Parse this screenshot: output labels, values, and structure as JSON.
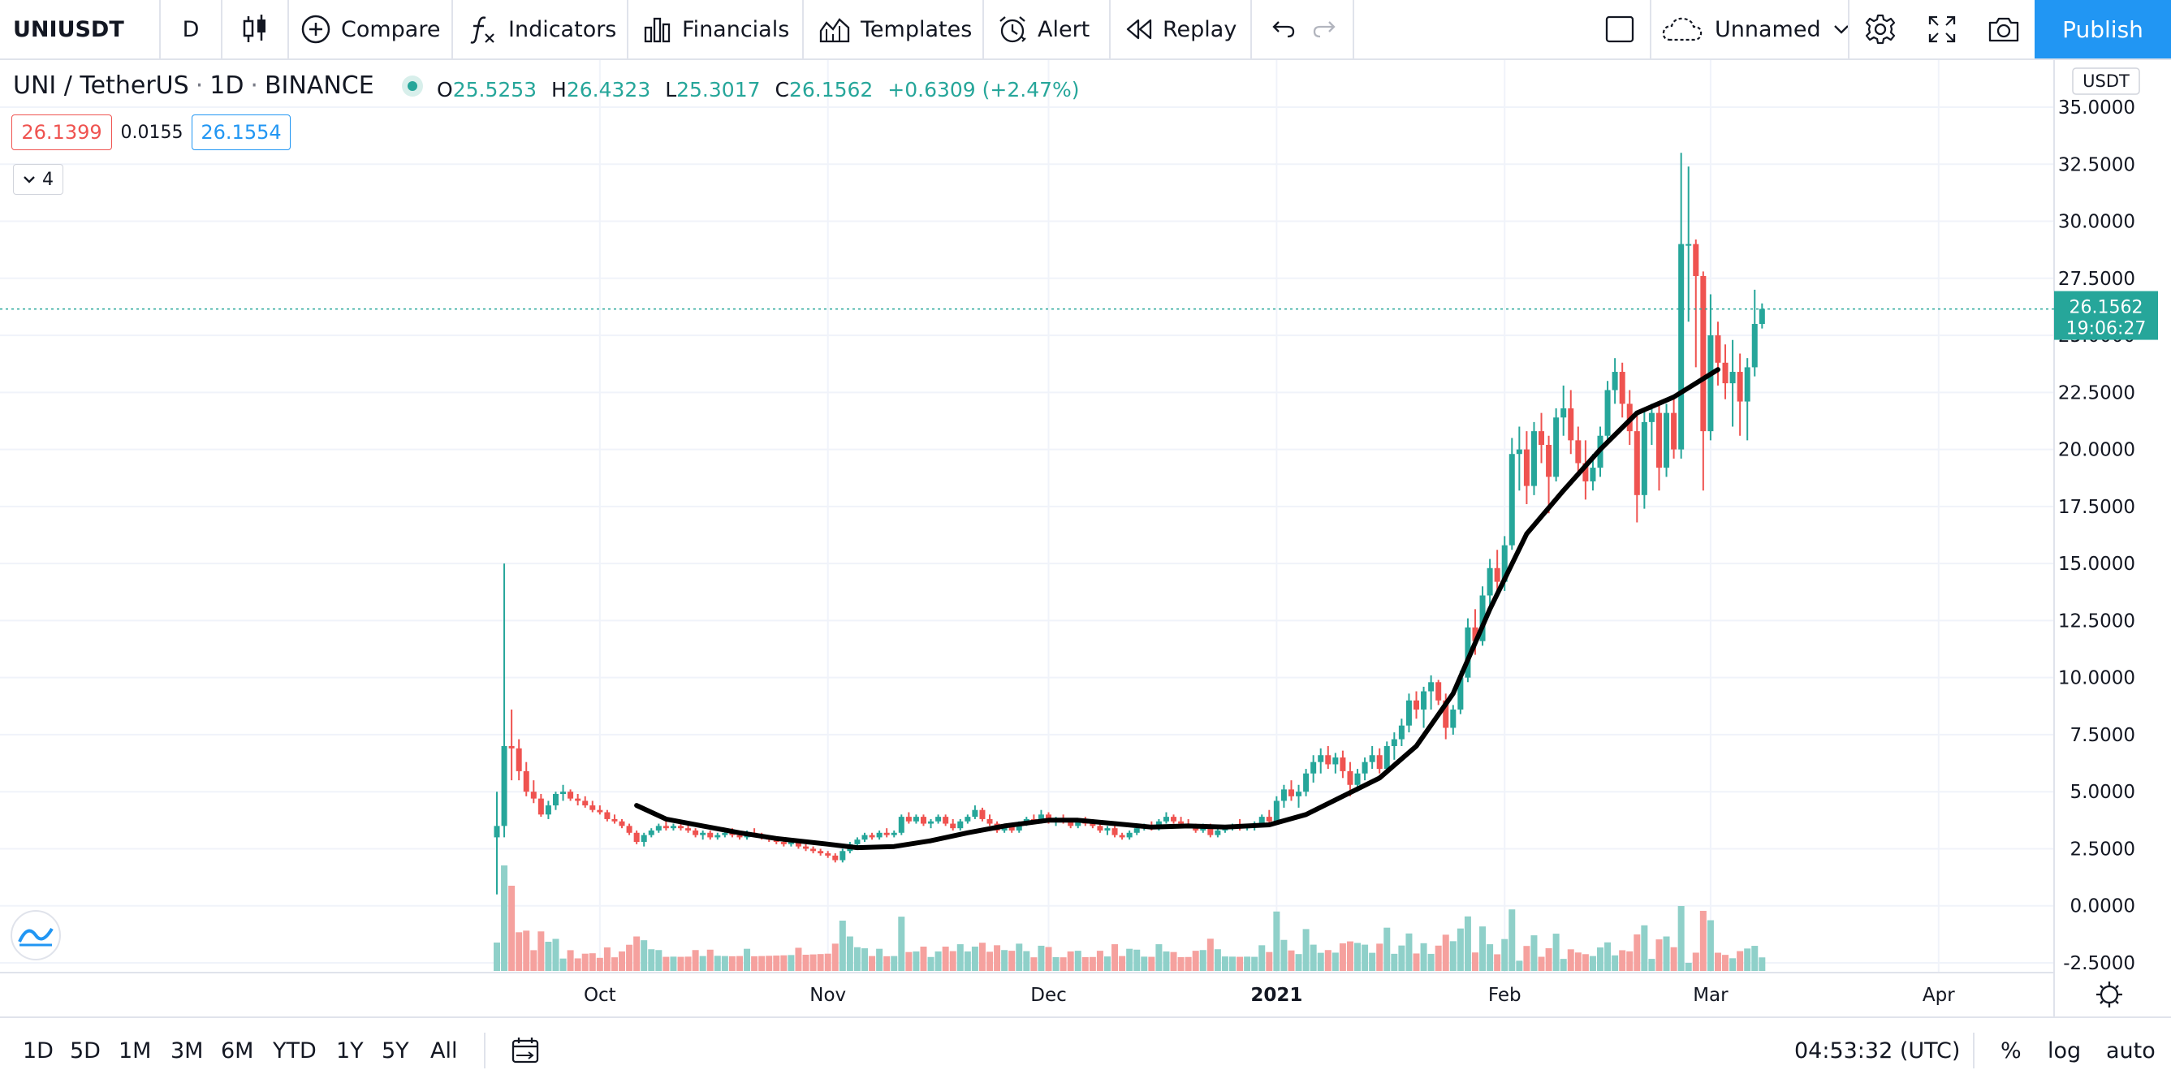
{
  "toolbar": {
    "symbol": "UNIUSDT",
    "interval": "D",
    "chart_style_icon": "candles-icon",
    "compare": "Compare",
    "indicators": "Indicators",
    "financials": "Financials",
    "templates": "Templates",
    "alert": "Alert",
    "replay": "Replay",
    "layout_name": "Unnamed",
    "publish": "Publish"
  },
  "legend": {
    "title": "UNI / TetherUS",
    "interval": "1D",
    "exchange": "BINANCE",
    "o_label": "O",
    "o": "25.5253",
    "h_label": "H",
    "h": "26.4323",
    "l_label": "L",
    "l": "25.3017",
    "c_label": "C",
    "c": "26.1562",
    "change": "+0.6309 (+2.47%)",
    "bid": "26.1399",
    "spread": "0.0155",
    "ask": "26.1554",
    "collapsed_count": "4"
  },
  "chart_data": {
    "type": "candlestick",
    "currency": "USDT",
    "y_ticks": [
      "35.0000",
      "32.5000",
      "30.0000",
      "27.5000",
      "25.0000",
      "22.5000",
      "20.0000",
      "17.5000",
      "15.0000",
      "12.5000",
      "10.0000",
      "7.5000",
      "5.0000",
      "2.5000",
      "0.0000",
      "-2.5000"
    ],
    "ylim": [
      -2.9,
      35.6
    ],
    "x_ticks": [
      "Oct",
      "Nov",
      "Dec",
      "2021",
      "Feb",
      "Mar",
      "Apr"
    ],
    "last_price": "26.1562",
    "countdown": "19:06:27",
    "colors": {
      "up": "#26a69a",
      "down": "#ef5350",
      "ma": "#000000",
      "up_vol": "#8fd0c9",
      "down_vol": "#f5a19e"
    },
    "ma_series": [
      [
        "2020-10-06",
        4.4
      ],
      [
        "2020-10-10",
        3.8
      ],
      [
        "2020-10-15",
        3.5
      ],
      [
        "2020-10-20",
        3.2
      ],
      [
        "2020-10-25",
        2.95
      ],
      [
        "2020-11-01",
        2.7
      ],
      [
        "2020-11-05",
        2.55
      ],
      [
        "2020-11-10",
        2.6
      ],
      [
        "2020-11-15",
        2.85
      ],
      [
        "2020-11-20",
        3.2
      ],
      [
        "2020-11-25",
        3.5
      ],
      [
        "2020-12-01",
        3.75
      ],
      [
        "2020-12-05",
        3.75
      ],
      [
        "2020-12-10",
        3.6
      ],
      [
        "2020-12-15",
        3.45
      ],
      [
        "2020-12-20",
        3.5
      ],
      [
        "2020-12-25",
        3.45
      ],
      [
        "2020-12-31",
        3.55
      ],
      [
        "2021-01-05",
        4.0
      ],
      [
        "2021-01-10",
        4.8
      ],
      [
        "2021-01-15",
        5.6
      ],
      [
        "2021-01-20",
        7.0
      ],
      [
        "2021-01-25",
        9.3
      ],
      [
        "2021-01-30",
        13.0
      ],
      [
        "2021-02-04",
        16.3
      ],
      [
        "2021-02-09",
        18.2
      ],
      [
        "2021-02-14",
        20.0
      ],
      [
        "2021-02-19",
        21.6
      ],
      [
        "2021-02-24",
        22.3
      ],
      [
        "2021-03-02",
        23.5
      ]
    ],
    "candles": [
      [
        "2020-09-17",
        3.0,
        5.0,
        0.5,
        3.5
      ],
      [
        "2020-09-18",
        3.5,
        15.0,
        3.0,
        7.0
      ],
      [
        "2020-09-19",
        7.0,
        8.6,
        5.5,
        6.9
      ],
      [
        "2020-09-20",
        6.9,
        7.3,
        5.5,
        5.9
      ],
      [
        "2020-09-21",
        5.9,
        6.3,
        4.8,
        5.0
      ],
      [
        "2020-09-22",
        5.0,
        5.5,
        4.5,
        4.7
      ],
      [
        "2020-09-23",
        4.7,
        4.9,
        3.9,
        4.0
      ],
      [
        "2020-09-24",
        4.0,
        4.6,
        3.8,
        4.4
      ],
      [
        "2020-09-25",
        4.4,
        5.0,
        4.2,
        4.9
      ],
      [
        "2020-09-26",
        4.9,
        5.3,
        4.6,
        5.0
      ],
      [
        "2020-09-27",
        5.0,
        5.1,
        4.6,
        4.7
      ],
      [
        "2020-09-28",
        4.7,
        4.9,
        4.4,
        4.6
      ],
      [
        "2020-09-29",
        4.6,
        4.8,
        4.3,
        4.4
      ],
      [
        "2020-09-30",
        4.4,
        4.6,
        4.1,
        4.2
      ],
      [
        "2020-10-01",
        4.2,
        4.4,
        4.0,
        4.1
      ],
      [
        "2020-10-02",
        4.1,
        4.2,
        3.7,
        3.8
      ],
      [
        "2020-10-03",
        3.8,
        4.0,
        3.6,
        3.7
      ],
      [
        "2020-10-04",
        3.7,
        3.8,
        3.4,
        3.5
      ],
      [
        "2020-10-05",
        3.5,
        3.6,
        3.1,
        3.2
      ],
      [
        "2020-10-06",
        3.2,
        3.3,
        2.7,
        2.8
      ],
      [
        "2020-10-07",
        2.8,
        3.2,
        2.6,
        3.1
      ],
      [
        "2020-10-08",
        3.1,
        3.4,
        3.0,
        3.3
      ],
      [
        "2020-10-09",
        3.3,
        3.6,
        3.2,
        3.5
      ],
      [
        "2020-10-10",
        3.5,
        3.7,
        3.3,
        3.4
      ],
      [
        "2020-10-11",
        3.4,
        3.6,
        3.3,
        3.5
      ],
      [
        "2020-10-12",
        3.5,
        3.7,
        3.3,
        3.4
      ],
      [
        "2020-10-13",
        3.4,
        3.6,
        3.2,
        3.3
      ],
      [
        "2020-10-14",
        3.3,
        3.4,
        3.0,
        3.1
      ],
      [
        "2020-10-15",
        3.1,
        3.3,
        2.9,
        3.2
      ],
      [
        "2020-10-16",
        3.2,
        3.3,
        2.9,
        3.0
      ],
      [
        "2020-10-17",
        3.0,
        3.2,
        2.9,
        3.1
      ],
      [
        "2020-10-18",
        3.1,
        3.3,
        3.0,
        3.2
      ],
      [
        "2020-10-19",
        3.2,
        3.4,
        3.0,
        3.1
      ],
      [
        "2020-10-20",
        3.1,
        3.2,
        2.9,
        3.0
      ],
      [
        "2020-10-21",
        3.0,
        3.3,
        2.9,
        3.2
      ],
      [
        "2020-10-22",
        3.2,
        3.4,
        3.0,
        3.1
      ],
      [
        "2020-10-23",
        3.1,
        3.2,
        2.9,
        3.0
      ],
      [
        "2020-10-24",
        3.0,
        3.1,
        2.8,
        2.9
      ],
      [
        "2020-10-25",
        2.9,
        3.0,
        2.7,
        2.8
      ],
      [
        "2020-10-26",
        2.8,
        2.9,
        2.6,
        2.7
      ],
      [
        "2020-10-27",
        2.7,
        2.9,
        2.6,
        2.8
      ],
      [
        "2020-10-28",
        2.8,
        2.9,
        2.5,
        2.6
      ],
      [
        "2020-10-29",
        2.6,
        2.7,
        2.4,
        2.5
      ],
      [
        "2020-10-30",
        2.5,
        2.6,
        2.3,
        2.4
      ],
      [
        "2020-10-31",
        2.4,
        2.5,
        2.2,
        2.3
      ],
      [
        "2020-11-01",
        2.3,
        2.4,
        2.1,
        2.2
      ],
      [
        "2020-11-02",
        2.2,
        2.3,
        1.9,
        2.0
      ],
      [
        "2020-11-03",
        2.0,
        2.5,
        1.9,
        2.4
      ],
      [
        "2020-11-04",
        2.4,
        2.8,
        2.3,
        2.7
      ],
      [
        "2020-11-05",
        2.7,
        3.0,
        2.6,
        2.9
      ],
      [
        "2020-11-06",
        2.9,
        3.2,
        2.8,
        3.1
      ],
      [
        "2020-11-07",
        3.1,
        3.2,
        2.9,
        3.0
      ],
      [
        "2020-11-08",
        3.0,
        3.3,
        2.9,
        3.2
      ],
      [
        "2020-11-09",
        3.2,
        3.4,
        3.0,
        3.1
      ],
      [
        "2020-11-10",
        3.1,
        3.3,
        3.0,
        3.2
      ],
      [
        "2020-11-11",
        3.2,
        4.0,
        3.1,
        3.9
      ],
      [
        "2020-11-12",
        3.9,
        4.1,
        3.6,
        3.7
      ],
      [
        "2020-11-13",
        3.7,
        4.0,
        3.6,
        3.9
      ],
      [
        "2020-11-14",
        3.9,
        4.0,
        3.5,
        3.6
      ],
      [
        "2020-11-15",
        3.6,
        3.8,
        3.4,
        3.7
      ],
      [
        "2020-11-16",
        3.7,
        4.0,
        3.6,
        3.9
      ],
      [
        "2020-11-17",
        3.9,
        4.0,
        3.5,
        3.6
      ],
      [
        "2020-11-18",
        3.6,
        3.8,
        3.3,
        3.4
      ],
      [
        "2020-11-19",
        3.4,
        3.8,
        3.3,
        3.7
      ],
      [
        "2020-11-20",
        3.7,
        4.0,
        3.6,
        3.9
      ],
      [
        "2020-11-21",
        3.9,
        4.4,
        3.8,
        4.2
      ],
      [
        "2020-11-22",
        4.2,
        4.3,
        3.7,
        3.8
      ],
      [
        "2020-11-23",
        3.8,
        4.0,
        3.5,
        3.6
      ],
      [
        "2020-11-24",
        3.6,
        3.7,
        3.2,
        3.3
      ],
      [
        "2020-11-25",
        3.3,
        3.6,
        3.2,
        3.5
      ],
      [
        "2020-11-26",
        3.5,
        3.6,
        3.2,
        3.3
      ],
      [
        "2020-11-27",
        3.3,
        3.7,
        3.2,
        3.6
      ],
      [
        "2020-11-28",
        3.6,
        3.9,
        3.5,
        3.8
      ],
      [
        "2020-11-29",
        3.8,
        4.0,
        3.6,
        3.7
      ],
      [
        "2020-11-30",
        3.7,
        4.2,
        3.6,
        4.0
      ],
      [
        "2020-12-01",
        4.0,
        4.1,
        3.6,
        3.7
      ],
      [
        "2020-12-02",
        3.7,
        3.9,
        3.5,
        3.8
      ],
      [
        "2020-12-03",
        3.8,
        4.0,
        3.6,
        3.7
      ],
      [
        "2020-12-04",
        3.7,
        3.8,
        3.4,
        3.5
      ],
      [
        "2020-12-05",
        3.5,
        3.8,
        3.4,
        3.7
      ],
      [
        "2020-12-06",
        3.7,
        3.9,
        3.5,
        3.6
      ],
      [
        "2020-12-07",
        3.6,
        3.8,
        3.4,
        3.5
      ],
      [
        "2020-12-08",
        3.5,
        3.6,
        3.2,
        3.3
      ],
      [
        "2020-12-09",
        3.3,
        3.5,
        3.1,
        3.4
      ],
      [
        "2020-12-10",
        3.4,
        3.5,
        3.0,
        3.1
      ],
      [
        "2020-12-11",
        3.1,
        3.2,
        2.9,
        3.0
      ],
      [
        "2020-12-12",
        3.0,
        3.3,
        2.9,
        3.2
      ],
      [
        "2020-12-13",
        3.2,
        3.5,
        3.1,
        3.4
      ],
      [
        "2020-12-14",
        3.4,
        3.6,
        3.3,
        3.5
      ],
      [
        "2020-12-15",
        3.5,
        3.7,
        3.3,
        3.4
      ],
      [
        "2020-12-16",
        3.4,
        3.8,
        3.3,
        3.7
      ],
      [
        "2020-12-17",
        3.7,
        4.1,
        3.6,
        3.9
      ],
      [
        "2020-12-18",
        3.9,
        4.0,
        3.6,
        3.7
      ],
      [
        "2020-12-19",
        3.7,
        3.9,
        3.5,
        3.6
      ],
      [
        "2020-12-20",
        3.6,
        3.8,
        3.4,
        3.5
      ],
      [
        "2020-12-21",
        3.5,
        3.6,
        3.2,
        3.3
      ],
      [
        "2020-12-22",
        3.3,
        3.6,
        3.2,
        3.5
      ],
      [
        "2020-12-23",
        3.5,
        3.6,
        3.0,
        3.1
      ],
      [
        "2020-12-24",
        3.1,
        3.4,
        3.0,
        3.3
      ],
      [
        "2020-12-25",
        3.3,
        3.5,
        3.2,
        3.4
      ],
      [
        "2020-12-26",
        3.4,
        3.6,
        3.3,
        3.5
      ],
      [
        "2020-12-27",
        3.5,
        3.8,
        3.3,
        3.4
      ],
      [
        "2020-12-28",
        3.4,
        3.6,
        3.3,
        3.5
      ],
      [
        "2020-12-29",
        3.5,
        3.7,
        3.3,
        3.6
      ],
      [
        "2020-12-30",
        3.6,
        4.0,
        3.5,
        3.9
      ],
      [
        "2020-12-31",
        3.9,
        4.2,
        3.6,
        3.7
      ],
      [
        "2021-01-01",
        3.7,
        4.8,
        3.6,
        4.6
      ],
      [
        "2021-01-02",
        4.6,
        5.3,
        4.3,
        5.1
      ],
      [
        "2021-01-03",
        5.1,
        5.5,
        4.6,
        4.8
      ],
      [
        "2021-01-04",
        4.8,
        5.3,
        4.3,
        5.0
      ],
      [
        "2021-01-05",
        5.0,
        6.0,
        4.8,
        5.8
      ],
      [
        "2021-01-06",
        5.8,
        6.6,
        5.4,
        6.3
      ],
      [
        "2021-01-07",
        6.3,
        6.9,
        5.8,
        6.6
      ],
      [
        "2021-01-08",
        6.6,
        7.0,
        6.0,
        6.2
      ],
      [
        "2021-01-09",
        6.2,
        6.7,
        5.8,
        6.5
      ],
      [
        "2021-01-10",
        6.5,
        6.8,
        5.6,
        5.9
      ],
      [
        "2021-01-11",
        5.9,
        6.3,
        4.8,
        5.3
      ],
      [
        "2021-01-12",
        5.3,
        6.0,
        5.0,
        5.8
      ],
      [
        "2021-01-13",
        5.8,
        6.5,
        5.5,
        6.3
      ],
      [
        "2021-01-14",
        6.3,
        7.0,
        6.0,
        6.6
      ],
      [
        "2021-01-15",
        6.6,
        6.9,
        5.8,
        6.0
      ],
      [
        "2021-01-16",
        6.0,
        7.2,
        5.8,
        7.0
      ],
      [
        "2021-01-17",
        7.0,
        7.6,
        6.4,
        7.3
      ],
      [
        "2021-01-18",
        7.3,
        8.2,
        7.0,
        7.9
      ],
      [
        "2021-01-19",
        7.9,
        9.3,
        7.6,
        9.0
      ],
      [
        "2021-01-20",
        9.0,
        9.4,
        8.2,
        8.6
      ],
      [
        "2021-01-21",
        8.6,
        9.6,
        7.8,
        9.4
      ],
      [
        "2021-01-22",
        9.4,
        10.1,
        8.6,
        9.8
      ],
      [
        "2021-01-23",
        9.8,
        9.9,
        8.8,
        9.0
      ],
      [
        "2021-01-24",
        9.0,
        9.3,
        7.3,
        7.8
      ],
      [
        "2021-01-25",
        7.8,
        8.8,
        7.5,
        8.6
      ],
      [
        "2021-01-26",
        8.6,
        10.3,
        8.4,
        10.0
      ],
      [
        "2021-01-27",
        10.0,
        12.6,
        9.8,
        12.2
      ],
      [
        "2021-01-28",
        12.2,
        13.0,
        11.0,
        11.6
      ],
      [
        "2021-01-29",
        11.6,
        14.0,
        11.4,
        13.6
      ],
      [
        "2021-01-30",
        13.6,
        15.2,
        12.8,
        14.8
      ],
      [
        "2021-01-31",
        14.8,
        15.6,
        13.6,
        14.2
      ],
      [
        "2021-02-01",
        14.2,
        16.2,
        13.8,
        15.8
      ],
      [
        "2021-02-02",
        15.8,
        20.5,
        15.6,
        19.8
      ],
      [
        "2021-02-03",
        19.8,
        21.0,
        18.2,
        20.0
      ],
      [
        "2021-02-04",
        20.0,
        20.8,
        17.6,
        18.4
      ],
      [
        "2021-02-05",
        18.4,
        21.2,
        18.0,
        20.8
      ],
      [
        "2021-02-06",
        20.8,
        21.6,
        19.4,
        20.2
      ],
      [
        "2021-02-07",
        20.2,
        20.6,
        17.2,
        18.8
      ],
      [
        "2021-02-08",
        18.8,
        21.8,
        18.6,
        21.4
      ],
      [
        "2021-02-09",
        21.4,
        22.8,
        20.6,
        21.8
      ],
      [
        "2021-02-10",
        21.8,
        22.6,
        19.8,
        20.4
      ],
      [
        "2021-02-11",
        20.4,
        21.0,
        18.8,
        19.4
      ],
      [
        "2021-02-12",
        19.4,
        20.4,
        17.8,
        18.6
      ],
      [
        "2021-02-13",
        18.6,
        19.8,
        18.2,
        19.2
      ],
      [
        "2021-02-14",
        19.2,
        21.0,
        18.8,
        20.6
      ],
      [
        "2021-02-15",
        20.6,
        23.0,
        20.4,
        22.6
      ],
      [
        "2021-02-16",
        22.6,
        24.0,
        22.0,
        23.4
      ],
      [
        "2021-02-17",
        23.4,
        23.8,
        21.4,
        22.0
      ],
      [
        "2021-02-18",
        22.0,
        22.6,
        20.2,
        20.8
      ],
      [
        "2021-02-19",
        20.8,
        21.6,
        16.8,
        18.0
      ],
      [
        "2021-02-20",
        18.0,
        21.8,
        17.4,
        21.2
      ],
      [
        "2021-02-21",
        21.2,
        22.0,
        20.2,
        21.6
      ],
      [
        "2021-02-22",
        21.6,
        22.0,
        18.2,
        19.2
      ],
      [
        "2021-02-23",
        19.2,
        22.0,
        18.8,
        21.6
      ],
      [
        "2021-02-24",
        21.6,
        22.2,
        19.6,
        20.0
      ],
      [
        "2021-02-25",
        20.0,
        33.0,
        19.6,
        29.0
      ],
      [
        "2021-02-26",
        29.0,
        32.4,
        25.6,
        29.0
      ],
      [
        "2021-02-27",
        29.0,
        29.2,
        23.6,
        27.6
      ],
      [
        "2021-02-28",
        27.6,
        27.8,
        18.2,
        20.8
      ],
      [
        "2021-03-01",
        20.8,
        26.8,
        20.4,
        25.0
      ],
      [
        "2021-03-02",
        25.0,
        25.6,
        22.8,
        23.8
      ],
      [
        "2021-03-03",
        23.8,
        24.6,
        22.2,
        22.9
      ],
      [
        "2021-03-04",
        22.9,
        24.8,
        21.0,
        23.4
      ],
      [
        "2021-03-05",
        23.4,
        24.2,
        20.6,
        22.1
      ],
      [
        "2021-03-06",
        22.1,
        24.0,
        20.4,
        23.6
      ],
      [
        "2021-03-07",
        23.6,
        27.0,
        23.2,
        25.5
      ],
      [
        "2021-03-08",
        25.5,
        26.4,
        25.3,
        26.16
      ]
    ],
    "volume_shape": "relative volume bars along bottom; large spike at listing"
  },
  "bottombar": {
    "ranges": [
      "1D",
      "5D",
      "1M",
      "3M",
      "6M",
      "YTD",
      "1Y",
      "5Y",
      "All"
    ],
    "clock": "04:53:32 (UTC)",
    "percent": "%",
    "log": "log",
    "auto": "auto"
  }
}
